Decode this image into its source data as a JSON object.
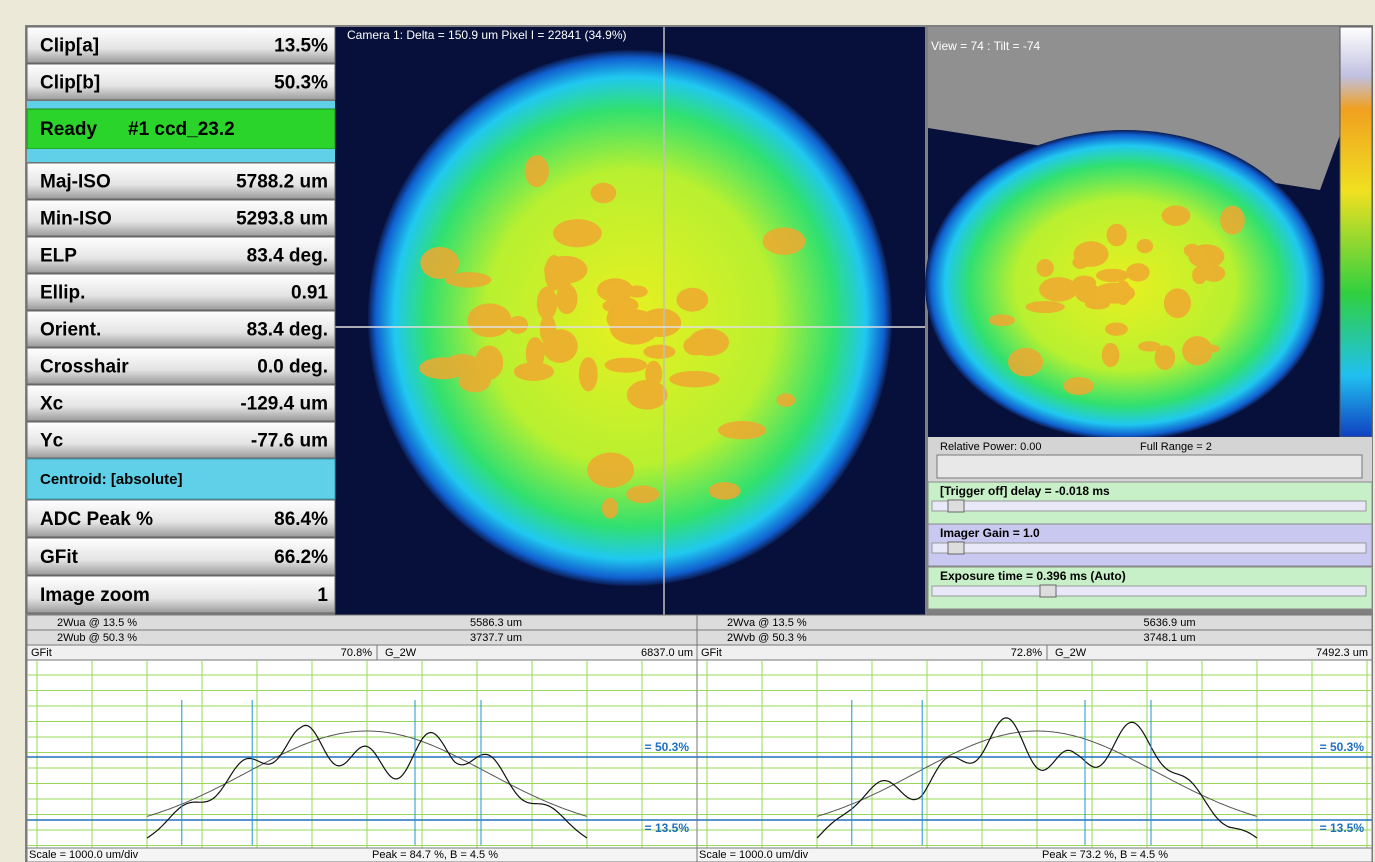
{
  "left_panel": {
    "top_rows": [
      {
        "label": "Clip[a]",
        "value": "13.5%"
      },
      {
        "label": "Clip[b]",
        "value": "50.3%"
      }
    ],
    "status": {
      "state": "Ready",
      "device": "#1 ccd_23.2"
    },
    "mid_rows": [
      {
        "label": "Maj-ISO",
        "value": "5788.2 um"
      },
      {
        "label": "Min-ISO",
        "value": "5293.8 um"
      },
      {
        "label": "ELP",
        "value": "83.4 deg."
      },
      {
        "label": "Ellip.",
        "value": "0.91"
      },
      {
        "label": "Orient.",
        "value": "83.4 deg."
      },
      {
        "label": "Crosshair",
        "value": "0.0 deg."
      },
      {
        "label": "Xc",
        "value": "-129.4 um"
      },
      {
        "label": "Yc",
        "value": "-77.6 um"
      }
    ],
    "centroid": "Centroid: [absolute]",
    "bottom_rows": [
      {
        "label": "ADC Peak %",
        "value": "86.4%"
      },
      {
        "label": "GFit",
        "value": "66.2%"
      },
      {
        "label": "Image zoom",
        "value": "1"
      }
    ]
  },
  "camera_title": "Camera 1: Delta = 150.9 um Pixel I = 22841 (34.9%)",
  "view_title": "View = 74 : Tilt = -74",
  "power": {
    "relative": "Relative Power: 0.00",
    "range": "Full Range = 2"
  },
  "sliders": [
    "[Trigger off] delay = -0.018 ms",
    "Imager Gain = 1.0",
    "Exposure time = 0.396 ms (Auto)"
  ],
  "profiles": [
    {
      "rows": [
        {
          "label": "2Wua @ 13.5 %",
          "value": "5586.3 um"
        },
        {
          "label": "2Wub @ 50.3 %",
          "value": "3737.7 um"
        }
      ],
      "gfit_label": "GFit",
      "gfit": "70.8%",
      "g2w_label": "G_2W",
      "g2w": "6837.0 um",
      "level_high": "= 50.3%",
      "level_low": "= 13.5%",
      "scale": "Scale = 1000.0 um/div",
      "peak": "Peak = 84.7 %,  B = 4.5 %"
    },
    {
      "rows": [
        {
          "label": "2Wva @ 13.5 %",
          "value": "5636.9 um"
        },
        {
          "label": "2Wvb @ 50.3 %",
          "value": "3748.1 um"
        }
      ],
      "gfit_label": "GFit",
      "gfit": "72.8%",
      "g2w_label": "G_2W",
      "g2w": "7492.3 um",
      "level_high": "= 50.3%",
      "level_low": "= 13.5%",
      "scale": "Scale = 1000.0 um/div",
      "peak": "Peak = 73.2 %,  B = 4.5 %"
    }
  ]
}
